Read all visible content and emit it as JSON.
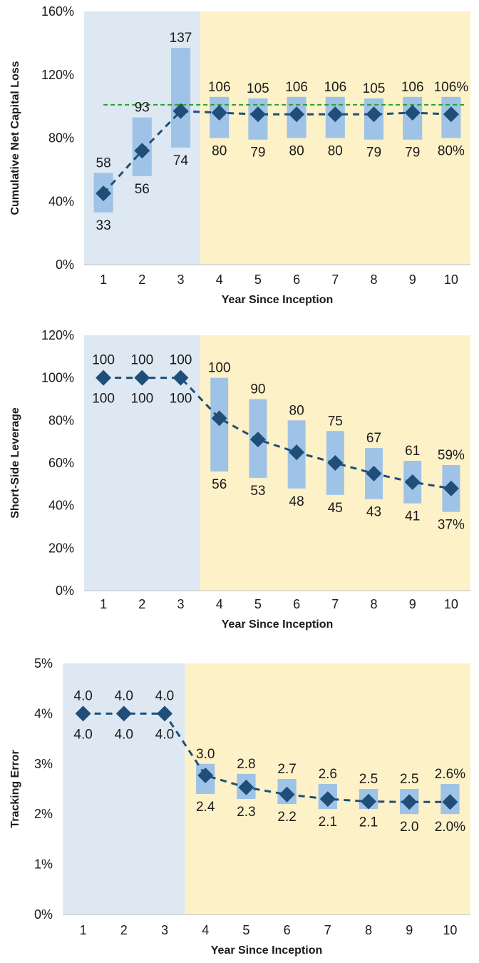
{
  "chart_data": [
    {
      "type": "line",
      "xlabel": "Year Since Inception",
      "ylabel": "Cumulative Net Capital Loss",
      "ylim": [
        0,
        160
      ],
      "y_ticks": [
        "0%",
        "40%",
        "80%",
        "120%",
        "160%"
      ],
      "y_tick_values": [
        0,
        40,
        80,
        120,
        160
      ],
      "categories": [
        "1",
        "2",
        "3",
        "4",
        "5",
        "6",
        "7",
        "8",
        "9",
        "10"
      ],
      "values": [
        45,
        72,
        97,
        96,
        95,
        95,
        95,
        95,
        96,
        95
      ],
      "range_high": [
        58,
        93,
        137,
        106,
        105,
        106,
        106,
        105,
        106,
        106
      ],
      "range_low": [
        33,
        56,
        74,
        80,
        79,
        80,
        80,
        79,
        79,
        80
      ],
      "high_labels": [
        "58",
        "93",
        "137",
        "106",
        "105",
        "106",
        "106",
        "105",
        "106",
        "106%"
      ],
      "low_labels": [
        "33",
        "56",
        "74",
        "80",
        "79",
        "80",
        "80",
        "79",
        "79",
        "80%"
      ],
      "reference_line": 101,
      "reference_color": "#2ca02c",
      "shaded_regions": [
        {
          "from_year": 1,
          "to_year": 3,
          "color": "#dde8f2"
        },
        {
          "from_year": 4,
          "to_year": 10,
          "color": "#fdf1c8"
        }
      ],
      "bar_color": "#9ec3e6",
      "line_color": "#1f4e79",
      "grid": false
    },
    {
      "type": "line",
      "xlabel": "Year Since Inception",
      "ylabel": "Short-Side Leverage",
      "ylim": [
        0,
        120
      ],
      "y_ticks": [
        "0%",
        "20%",
        "40%",
        "60%",
        "80%",
        "100%",
        "120%"
      ],
      "y_tick_values": [
        0,
        20,
        40,
        60,
        80,
        100,
        120
      ],
      "categories": [
        "1",
        "2",
        "3",
        "4",
        "5",
        "6",
        "7",
        "8",
        "9",
        "10"
      ],
      "values": [
        100,
        100,
        100,
        81,
        71,
        65,
        60,
        55,
        51,
        48
      ],
      "range_high": [
        100,
        100,
        100,
        100,
        90,
        80,
        75,
        67,
        61,
        59
      ],
      "range_low": [
        100,
        100,
        100,
        56,
        53,
        48,
        45,
        43,
        41,
        37
      ],
      "high_labels": [
        "100",
        "100",
        "100",
        "100",
        "90",
        "80",
        "75",
        "67",
        "61",
        "59%"
      ],
      "low_labels": [
        "100",
        "100",
        "100",
        "56",
        "53",
        "48",
        "45",
        "43",
        "41",
        "37%"
      ],
      "shaded_regions": [
        {
          "from_year": 1,
          "to_year": 3,
          "color": "#dde8f2"
        },
        {
          "from_year": 4,
          "to_year": 10,
          "color": "#fdf1c8"
        }
      ],
      "bar_color": "#9ec3e6",
      "line_color": "#1f4e79",
      "grid": false
    },
    {
      "type": "line",
      "xlabel": "Year Since Inception",
      "ylabel": "Tracking Error",
      "ylim": [
        0,
        5
      ],
      "y_ticks": [
        "0%",
        "1%",
        "2%",
        "3%",
        "4%",
        "5%"
      ],
      "y_tick_values": [
        0,
        1,
        2,
        3,
        4,
        5
      ],
      "categories": [
        "1",
        "2",
        "3",
        "4",
        "5",
        "6",
        "7",
        "8",
        "9",
        "10"
      ],
      "values": [
        4.0,
        4.0,
        4.0,
        2.77,
        2.53,
        2.39,
        2.3,
        2.25,
        2.24,
        2.24
      ],
      "range_high": [
        4.0,
        4.0,
        4.0,
        3.0,
        2.8,
        2.7,
        2.6,
        2.5,
        2.5,
        2.6
      ],
      "range_low": [
        4.0,
        4.0,
        4.0,
        2.4,
        2.3,
        2.2,
        2.1,
        2.1,
        2.0,
        2.0
      ],
      "high_labels": [
        "4.0",
        "4.0",
        "4.0",
        "3.0",
        "2.8",
        "2.7",
        "2.6",
        "2.5",
        "2.5",
        "2.6%"
      ],
      "low_labels": [
        "4.0",
        "4.0",
        "4.0",
        "2.4",
        "2.3",
        "2.2",
        "2.1",
        "2.1",
        "2.0",
        "2.0%"
      ],
      "shaded_regions": [
        {
          "from_year": 1,
          "to_year": 3,
          "color": "#dde8f2"
        },
        {
          "from_year": 4,
          "to_year": 10,
          "color": "#fdf1c8"
        }
      ],
      "bar_color": "#9ec3e6",
      "line_color": "#1f4e79",
      "grid": false
    }
  ]
}
